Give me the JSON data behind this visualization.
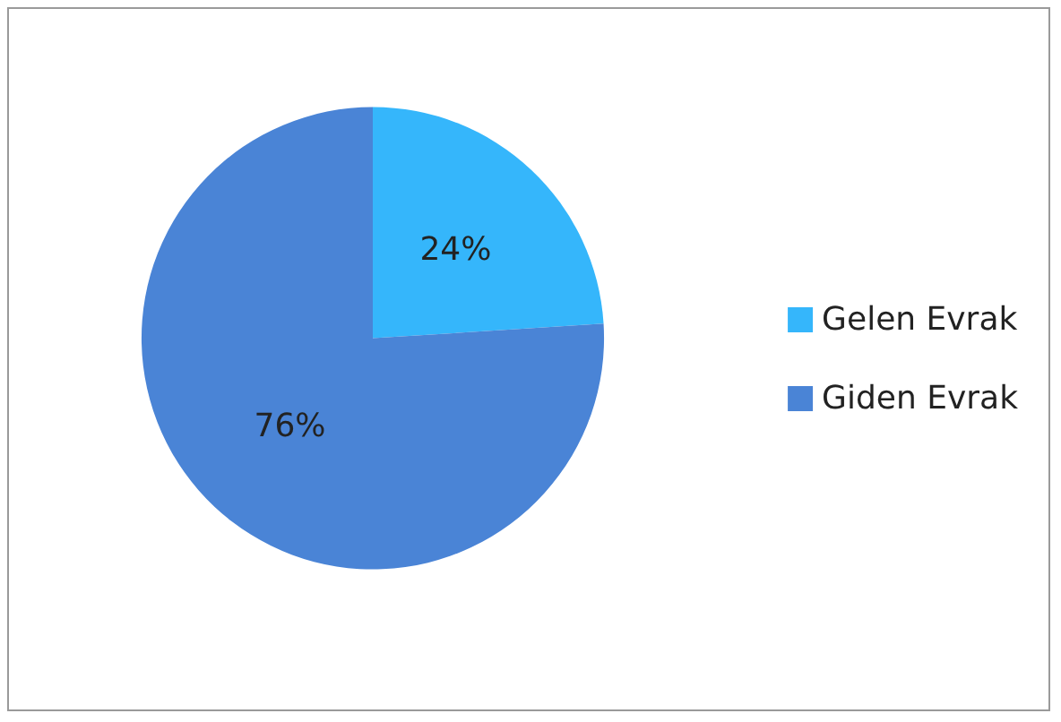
{
  "chart_data": {
    "type": "pie",
    "categories": [
      "Gelen Evrak",
      "Giden Evrak"
    ],
    "values": [
      24,
      76
    ],
    "colors": [
      "#35b6fb",
      "#4a84d6"
    ],
    "value_labels": [
      "24%",
      "76%"
    ],
    "legend": "right"
  }
}
